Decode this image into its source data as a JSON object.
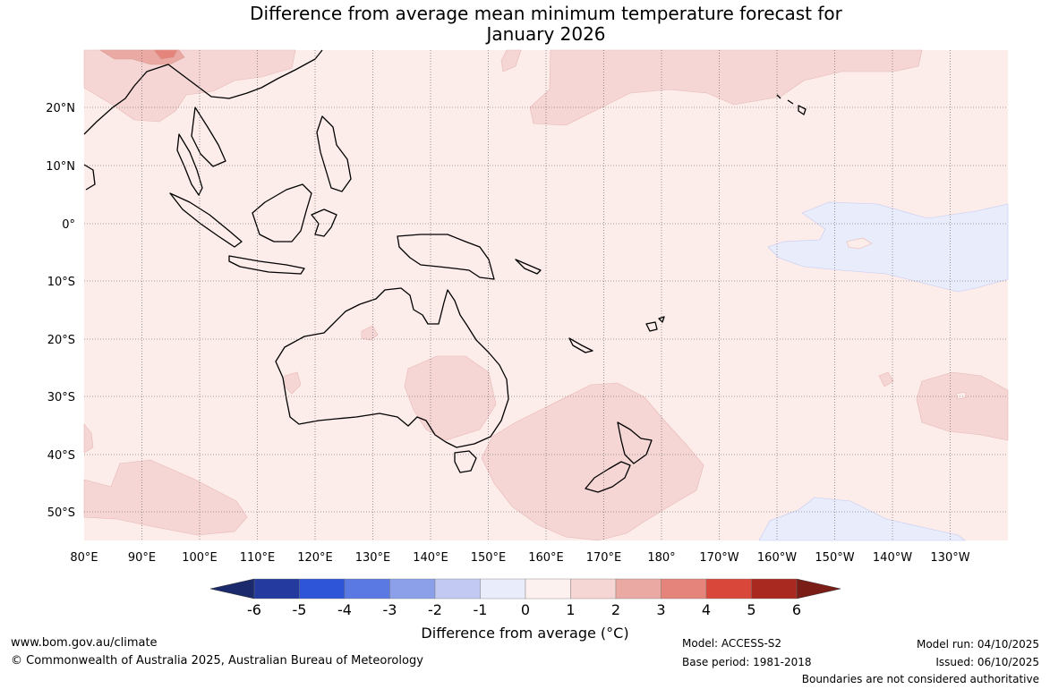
{
  "title": {
    "line1": "Difference from average mean minimum temperature forecast for",
    "line2": "January 2026"
  },
  "map": {
    "lat_labels": [
      "20°N",
      "10°N",
      "0°",
      "10°S",
      "20°S",
      "30°S",
      "40°S",
      "50°S"
    ],
    "lon_labels": [
      "80°E",
      "90°E",
      "100°E",
      "110°E",
      "120°E",
      "130°E",
      "140°E",
      "150°E",
      "160°E",
      "170°E",
      "180°",
      "170°W",
      "160°W",
      "150°W",
      "140°W",
      "130°W"
    ]
  },
  "colorbar": {
    "ticks": [
      "-6",
      "-5",
      "-4",
      "-3",
      "-2",
      "-1",
      "0",
      "1",
      "2",
      "3",
      "4",
      "5",
      "6"
    ],
    "colors": [
      "#243a9e",
      "#2e55d8",
      "#5b79e2",
      "#8ca0ea",
      "#c2caf3",
      "#e9ecfb",
      "#fdf1ef",
      "#f5d6d4",
      "#eaa9a3",
      "#e4847a",
      "#d9473a",
      "#a9281f"
    ],
    "under_color": "#1a2a6c",
    "over_color": "#7a1d16",
    "label": "Difference from average (°C)"
  },
  "colors": {
    "ocean_base": "#fcecea",
    "warm_1_2": "#f5d6d4",
    "warm_2_3": "#eaa9a3",
    "cool_0_1": "#e9ecfb",
    "land_outline": "#000000"
  },
  "footer": {
    "website": "www.bom.gov.au/climate",
    "copyright": "© Commonwealth of Australia 2025, Australian Bureau of Meteorology",
    "model": "Model: ACCESS-S2",
    "base_period": "Base period: 1981-2018",
    "model_run": "Model run: 04/10/2025",
    "issued": "Issued: 06/10/2025",
    "disclaimer": "Boundaries are not considered authoritative"
  }
}
